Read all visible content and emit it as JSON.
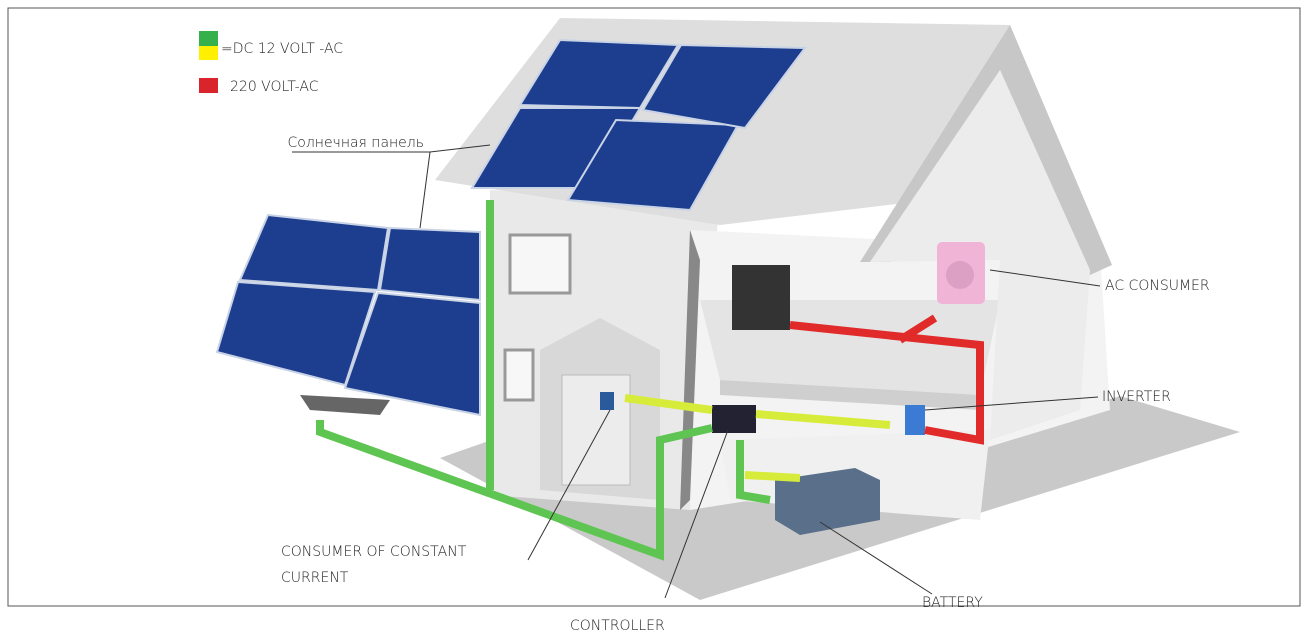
{
  "legend": [
    "=DC 12 VOLT -AC",
    "220 VOLT-AC"
  ],
  "labels": {
    "solar_panel": "Солнечная панель",
    "ac_consumer": "AC CONSUMER",
    "inverter": "INVERTER",
    "consumer_dc": [
      "CONSUMER OF CONSTANT",
      "CURRENT"
    ],
    "battery": "BATTERY",
    "controller": "CONTROLLER"
  }
}
